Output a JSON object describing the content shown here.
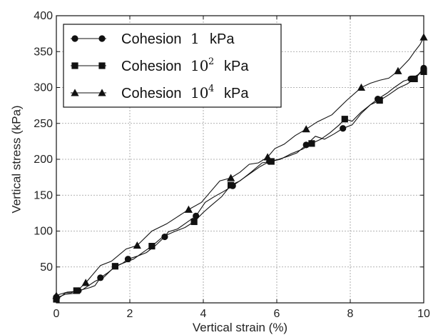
{
  "chart_data": {
    "type": "line",
    "xlabel": "Vertical strain (%)",
    "ylabel": "Vertical stress (kPa)",
    "xlim": [
      0,
      10
    ],
    "ylim": [
      0,
      400
    ],
    "xticks": [
      0,
      2,
      4,
      6,
      8,
      10
    ],
    "yticks": [
      50,
      100,
      150,
      200,
      250,
      300,
      350,
      400
    ],
    "grid": true,
    "legend_position": "top-left",
    "series": [
      {
        "name_text": "Cohesion",
        "name_value": "1",
        "name_exp": "",
        "name_unit": "kPa",
        "marker": "circle",
        "points": [
          [
            0,
            8
          ],
          [
            0.1,
            9
          ],
          [
            0.25,
            12
          ],
          [
            0.45,
            13
          ],
          [
            0.6,
            17
          ],
          [
            0.75,
            19
          ],
          [
            0.9,
            21
          ],
          [
            1.05,
            24
          ],
          [
            1.2,
            35
          ],
          [
            1.4,
            42
          ],
          [
            1.6,
            50
          ],
          [
            1.8,
            55
          ],
          [
            1.95,
            61
          ],
          [
            2.2,
            65
          ],
          [
            2.45,
            70
          ],
          [
            2.7,
            80
          ],
          [
            2.95,
            92
          ],
          [
            3.05,
            99
          ],
          [
            3.3,
            103
          ],
          [
            3.55,
            112
          ],
          [
            3.8,
            121
          ],
          [
            4.05,
            140
          ],
          [
            4.3,
            148
          ],
          [
            4.55,
            155
          ],
          [
            4.8,
            163
          ],
          [
            5.05,
            172
          ],
          [
            5.3,
            181
          ],
          [
            5.55,
            190
          ],
          [
            5.8,
            197
          ],
          [
            6.05,
            200
          ],
          [
            6.3,
            204
          ],
          [
            6.55,
            209
          ],
          [
            6.8,
            220
          ],
          [
            7.05,
            232
          ],
          [
            7.3,
            228
          ],
          [
            7.55,
            235
          ],
          [
            7.8,
            243
          ],
          [
            8.05,
            248
          ],
          [
            8.3,
            264
          ],
          [
            8.55,
            276
          ],
          [
            8.75,
            284
          ],
          [
            9.0,
            292
          ],
          [
            9.2,
            300
          ],
          [
            9.45,
            309
          ],
          [
            9.65,
            312
          ],
          [
            9.85,
            318
          ],
          [
            10.0,
            327
          ]
        ]
      },
      {
        "name_text": "Cohesion",
        "name_value": "10",
        "name_exp": "2",
        "name_unit": "kPa",
        "marker": "square",
        "points": [
          [
            0,
            5
          ],
          [
            0.1,
            8
          ],
          [
            0.25,
            14
          ],
          [
            0.4,
            14
          ],
          [
            0.55,
            17
          ],
          [
            0.7,
            18
          ],
          [
            1.05,
            30
          ],
          [
            1.3,
            36
          ],
          [
            1.6,
            51
          ],
          [
            1.85,
            56
          ],
          [
            2.1,
            61
          ],
          [
            2.35,
            70
          ],
          [
            2.6,
            79
          ],
          [
            2.9,
            92
          ],
          [
            3.2,
            99
          ],
          [
            3.5,
            105
          ],
          [
            3.75,
            113
          ],
          [
            4.0,
            126
          ],
          [
            4.2,
            135
          ],
          [
            4.5,
            148
          ],
          [
            4.75,
            164
          ],
          [
            5.0,
            170
          ],
          [
            5.3,
            182
          ],
          [
            5.6,
            195
          ],
          [
            5.85,
            197
          ],
          [
            6.1,
            200
          ],
          [
            6.4,
            208
          ],
          [
            6.7,
            214
          ],
          [
            6.95,
            222
          ],
          [
            7.2,
            228
          ],
          [
            7.45,
            237
          ],
          [
            7.7,
            248
          ],
          [
            7.85,
            256
          ],
          [
            8.05,
            253
          ],
          [
            8.3,
            266
          ],
          [
            8.55,
            276
          ],
          [
            8.8,
            282
          ],
          [
            9.05,
            290
          ],
          [
            9.3,
            299
          ],
          [
            9.55,
            305
          ],
          [
            9.75,
            312
          ],
          [
            9.9,
            320
          ],
          [
            10.0,
            322
          ]
        ]
      },
      {
        "name_text": "Cohesion",
        "name_value": "10",
        "name_exp": "4",
        "name_unit": "kPa",
        "marker": "triangle",
        "points": [
          [
            0,
            10
          ],
          [
            0.1,
            12
          ],
          [
            0.3,
            15
          ],
          [
            0.55,
            16
          ],
          [
            0.8,
            28
          ],
          [
            1.2,
            52
          ],
          [
            1.5,
            58
          ],
          [
            1.9,
            75
          ],
          [
            2.2,
            80
          ],
          [
            2.6,
            100
          ],
          [
            3.0,
            110
          ],
          [
            3.3,
            120
          ],
          [
            3.6,
            130
          ],
          [
            3.95,
            140
          ],
          [
            4.2,
            155
          ],
          [
            4.45,
            170
          ],
          [
            4.75,
            174
          ],
          [
            5.0,
            182
          ],
          [
            5.25,
            193
          ],
          [
            5.5,
            195
          ],
          [
            5.75,
            203
          ],
          [
            5.95,
            215
          ],
          [
            6.2,
            221
          ],
          [
            6.5,
            233
          ],
          [
            6.8,
            242
          ],
          [
            7.1,
            252
          ],
          [
            7.5,
            262
          ],
          [
            7.9,
            282
          ],
          [
            8.3,
            300
          ],
          [
            8.55,
            306
          ],
          [
            8.8,
            310
          ],
          [
            9.05,
            313
          ],
          [
            9.3,
            323
          ],
          [
            9.6,
            339
          ],
          [
            9.75,
            350
          ],
          [
            9.9,
            360
          ],
          [
            10.0,
            370
          ]
        ]
      }
    ]
  }
}
